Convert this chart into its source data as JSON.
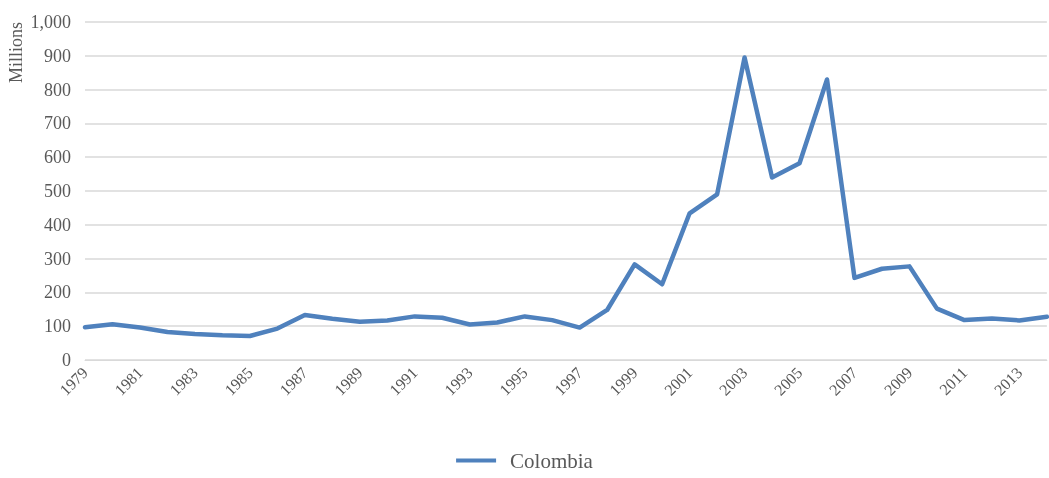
{
  "chart_data": {
    "type": "line",
    "ylabel": "Millions",
    "categories": [
      "1979",
      null,
      "1981",
      null,
      "1983",
      null,
      "1985",
      null,
      "1987",
      null,
      "1989",
      null,
      "1991",
      null,
      "1993",
      null,
      "1995",
      null,
      "1997",
      null,
      "1999",
      null,
      "2001",
      null,
      "2003",
      null,
      "2005",
      null,
      "2007",
      null,
      "2009",
      null,
      "2011",
      null,
      "2013",
      null
    ],
    "series": [
      {
        "name": "Colombia",
        "color": "#4f81bd",
        "values": [
          97,
          106,
          96,
          83,
          77,
          73,
          71,
          93,
          133,
          122,
          113,
          117,
          129,
          125,
          105,
          111,
          129,
          118,
          96,
          148,
          283,
          224,
          434,
          490,
          895,
          540,
          582,
          830,
          243,
          270,
          277,
          152,
          118,
          123,
          117,
          128
        ]
      }
    ],
    "ylim": [
      0,
      1000
    ],
    "yticks": [
      0,
      100,
      200,
      300,
      400,
      500,
      600,
      700,
      800,
      900,
      {
        "value": 1000,
        "label": "1,000"
      }
    ],
    "grid": "y",
    "legend": "bottom",
    "marker": "none",
    "line_style": "solid"
  }
}
